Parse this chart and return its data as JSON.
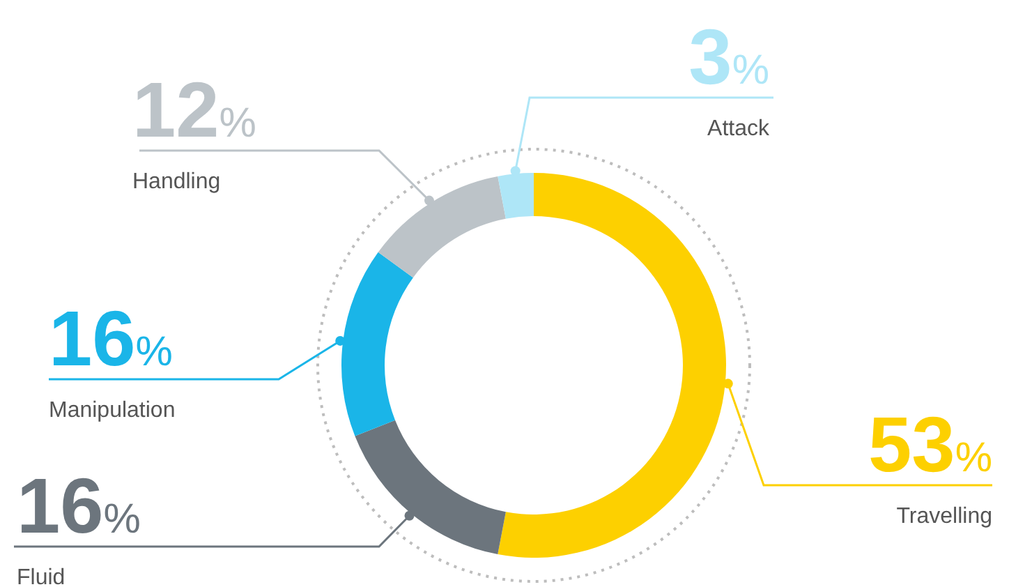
{
  "chart_data": {
    "type": "donut",
    "categories": [
      "Travelling",
      "Fluid",
      "Manipulation",
      "Handling",
      "Attack"
    ],
    "values": [
      53,
      16,
      16,
      12,
      3
    ],
    "colors": [
      "#fdd000",
      "#6c757d",
      "#1ab5e8",
      "#bcc3c8",
      "#aee6f7"
    ],
    "value_labels": [
      "53%",
      "16%",
      "16%",
      "12%",
      "3%"
    ]
  }
}
